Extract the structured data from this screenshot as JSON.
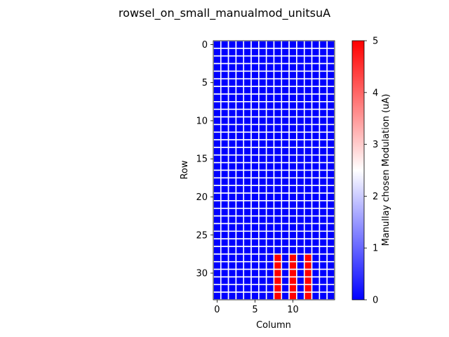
{
  "chart_data": {
    "type": "heatmap",
    "title": "rowsel_on_small_manualmod_unitsuA",
    "xlabel": "Column",
    "ylabel": "Row",
    "rows": 34,
    "cols": 16,
    "x_ticks": [
      0,
      5,
      10
    ],
    "y_ticks": [
      0,
      5,
      10,
      15,
      20,
      25,
      30
    ],
    "colorbar": {
      "label": "Manullay chosen Modulation (uA)",
      "min": 0,
      "max": 5,
      "ticks": [
        0,
        1,
        2,
        3,
        4,
        5
      ],
      "colors": [
        "#0000ff",
        "#ffffff",
        "#ff0000"
      ]
    },
    "default_value": 0,
    "grid_lines": true,
    "grid_color": "#ffffff",
    "highlighted_cells": {
      "rows": [
        28,
        29,
        30,
        31,
        32,
        33
      ],
      "cols": [
        8,
        10,
        12
      ],
      "value": 5
    }
  }
}
